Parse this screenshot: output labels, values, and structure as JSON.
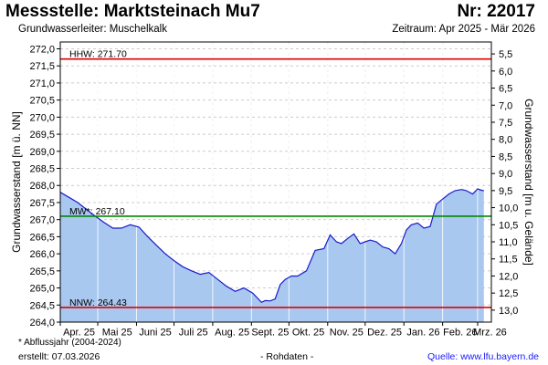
{
  "header": {
    "title": "Messstelle: Marktsteinach Mu7",
    "station_nr": "Nr: 22017",
    "subtitle": "Grundwasserleiter: Muschelkalk",
    "period": "Zeitraum: Apr 2025 - Mär 2026"
  },
  "footer": {
    "footnote": "* Abflussjahr (2004-2024)",
    "created": "erstellt:  07.03.2026",
    "rawdata": "- Rohdaten -",
    "source": "Quelle: www.lfu.bayern.de"
  },
  "colors": {
    "area_fill": "#a8c8f0",
    "line": "#1a1acc",
    "hhw": "#e00000",
    "mw": "#008800",
    "nnw": "#e00000",
    "grid": "#cccccc",
    "month_grid": "#ffffff"
  },
  "chart_data": {
    "type": "area",
    "ylabel": "Grundwasserstand [m ü. NN]",
    "y2label": "Grundwasserstand [m u. Gelände]",
    "ylim": [
      264.0,
      272.2
    ],
    "y_ticks": [
      264.0,
      264.5,
      265.0,
      265.5,
      266.0,
      266.5,
      267.0,
      267.5,
      268.0,
      268.5,
      269.0,
      269.5,
      270.0,
      270.5,
      271.0,
      271.5,
      272.0
    ],
    "y_tick_labels": [
      "264,0",
      "264,5",
      "265,0",
      "265,5",
      "266,0",
      "266,5",
      "267,0",
      "267,5",
      "268,0",
      "268,5",
      "269,0",
      "269,5",
      "270,0",
      "270,5",
      "271,0",
      "271,5",
      "272,0"
    ],
    "y2_ticks": [
      5.5,
      6.0,
      6.5,
      7.0,
      7.5,
      8.0,
      8.5,
      9.0,
      9.5,
      10.0,
      10.5,
      11.0,
      11.5,
      12.0,
      12.5,
      13.0
    ],
    "y2_tick_labels": [
      "5,5",
      "6,0",
      "6,5",
      "7,0",
      "7,5",
      "8,0",
      "8,5",
      "9,0",
      "9,5",
      "10,0",
      "10,5",
      "11,0",
      "11,5",
      "12,0",
      "12,5",
      "13,0"
    ],
    "y2_offset": 277.35,
    "x_months": [
      "2025-04",
      "2025-05",
      "2025-06",
      "2025-07",
      "2025-08",
      "2025-09",
      "2025-10",
      "2025-11",
      "2025-12",
      "2026-01",
      "2026-02",
      "2026-03"
    ],
    "x_labels": [
      "Apr. 25",
      "Mai 25",
      "Juni 25",
      "Juli 25",
      "Aug. 25",
      "Sept. 25",
      "Okt. 25",
      "Nov. 25",
      "Dez. 25",
      "Jan. 26",
      "Feb. 26",
      "Mrz. 26"
    ],
    "grid": true,
    "reference_lines": [
      {
        "label": "HHW: 271.70",
        "value": 271.7,
        "color": "#e00000"
      },
      {
        "label": "MW*: 267.10",
        "value": 267.1,
        "color": "#008800"
      },
      {
        "label": "NNW: 264.43",
        "value": 264.43,
        "color": "#e00000"
      }
    ],
    "series": [
      {
        "x": [
          "2025-04-01",
          "2025-04-08",
          "2025-04-15",
          "2025-04-22",
          "2025-04-29",
          "2025-05-06",
          "2025-05-13",
          "2025-05-20",
          "2025-05-27",
          "2025-06-03",
          "2025-06-10",
          "2025-06-17",
          "2025-06-24",
          "2025-07-01",
          "2025-07-08",
          "2025-07-15",
          "2025-07-22",
          "2025-07-29",
          "2025-08-05",
          "2025-08-12",
          "2025-08-19",
          "2025-08-26",
          "2025-09-02",
          "2025-09-09",
          "2025-09-12",
          "2025-09-16",
          "2025-09-20",
          "2025-09-24",
          "2025-09-28",
          "2025-10-03",
          "2025-10-08",
          "2025-10-15",
          "2025-10-22",
          "2025-10-29",
          "2025-11-03",
          "2025-11-08",
          "2025-11-12",
          "2025-11-17",
          "2025-11-22",
          "2025-11-27",
          "2025-12-01",
          "2025-12-05",
          "2025-12-10",
          "2025-12-15",
          "2025-12-20",
          "2025-12-25",
          "2025-12-30",
          "2026-01-03",
          "2026-01-07",
          "2026-01-12",
          "2026-01-17",
          "2026-01-22",
          "2026-01-27",
          "2026-02-01",
          "2026-02-06",
          "2026-02-11",
          "2026-02-16",
          "2026-02-20",
          "2026-02-25",
          "2026-03-01",
          "2026-03-04",
          "2026-03-06"
        ],
        "y": [
          267.8,
          267.65,
          267.5,
          267.3,
          267.1,
          266.92,
          266.75,
          266.75,
          266.85,
          266.78,
          266.5,
          266.25,
          266.0,
          265.8,
          265.62,
          265.5,
          265.4,
          265.45,
          265.25,
          265.05,
          264.9,
          265.0,
          264.85,
          264.58,
          264.63,
          264.62,
          264.68,
          265.1,
          265.25,
          265.35,
          265.35,
          265.5,
          266.1,
          266.15,
          266.55,
          266.35,
          266.3,
          266.45,
          266.58,
          266.3,
          266.35,
          266.4,
          266.35,
          266.2,
          266.15,
          266.0,
          266.3,
          266.7,
          266.85,
          266.9,
          266.75,
          266.8,
          267.45,
          267.6,
          267.75,
          267.85,
          267.88,
          267.85,
          267.75,
          267.9,
          267.86,
          267.85
        ]
      }
    ]
  }
}
